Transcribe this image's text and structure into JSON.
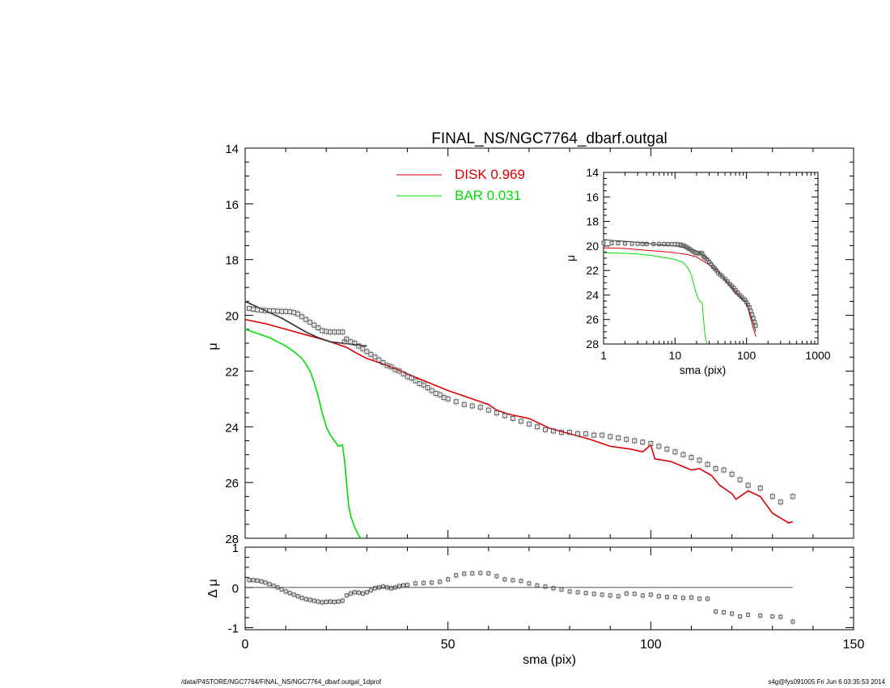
{
  "figure": {
    "title": "FINAL_NS/NGC7764_dbarf.outgal",
    "footer_left": "/data/P4STORE/NGC7764/FINAL_NS/NGC7764_dbarf.outgal_1dprof",
    "footer_right": "s4g@fys091005  Fri Jun  6 03:35:53 2014"
  },
  "chart_data": [
    {
      "id": "main",
      "type": "scatter",
      "title": "FINAL_NS/NGC7764_dbarf.outgal",
      "xlabel": "",
      "ylabel": "μ",
      "xlim": [
        0,
        150
      ],
      "ylim": [
        28,
        14
      ],
      "y_inverted": true,
      "y_ticks": [
        "14",
        "16",
        "18",
        "20",
        "22",
        "24",
        "26",
        "28"
      ],
      "legend": {
        "placement": "top-center",
        "entries": [
          {
            "label": "DISK  0.969",
            "color": "#dd0000"
          },
          {
            "label": "BAR  0.031",
            "color": "#00dd00"
          }
        ]
      },
      "series": [
        {
          "name": "DISK  0.969",
          "kind": "line",
          "color": "#dd0000",
          "x": [
            0,
            5,
            10,
            15,
            20,
            25,
            28,
            30,
            35,
            40,
            45,
            50,
            55,
            60,
            62,
            65,
            70,
            75,
            80,
            85,
            90,
            95,
            98,
            100,
            101,
            105,
            110,
            112,
            115,
            117,
            120,
            121,
            124,
            127,
            130,
            134,
            135
          ],
          "y": [
            20.15,
            20.3,
            20.5,
            20.7,
            20.9,
            21.15,
            21.4,
            21.55,
            21.8,
            22.1,
            22.4,
            22.7,
            22.95,
            23.2,
            23.4,
            23.55,
            23.7,
            24.05,
            24.25,
            24.45,
            24.7,
            24.8,
            24.9,
            24.65,
            25.15,
            25.25,
            25.55,
            25.5,
            25.75,
            26.1,
            26.4,
            26.6,
            26.3,
            26.5,
            27.1,
            27.45,
            27.4
          ]
        },
        {
          "name": "BAR  0.031",
          "kind": "line",
          "color": "#00dd00",
          "x": [
            0,
            2,
            4,
            6,
            8,
            10,
            12,
            14,
            15,
            16,
            17,
            18,
            19,
            20,
            21,
            22,
            23,
            24,
            24.5,
            25,
            25.5,
            26,
            27,
            28,
            28.5
          ],
          "y": [
            20.5,
            20.6,
            20.7,
            20.8,
            20.95,
            21.1,
            21.3,
            21.55,
            21.75,
            22.0,
            22.4,
            22.9,
            23.5,
            24.0,
            24.3,
            24.5,
            24.7,
            24.65,
            25.2,
            26.0,
            26.8,
            27.2,
            27.6,
            27.9,
            28.0
          ]
        },
        {
          "name": "",
          "kind": "line",
          "color": "#333333",
          "x": [
            0,
            3,
            6,
            9,
            12,
            15,
            18,
            21,
            24,
            27,
            30
          ],
          "y": [
            19.5,
            19.7,
            19.9,
            20.1,
            20.35,
            20.6,
            20.8,
            20.95,
            21.0,
            21.05,
            21.1
          ]
        },
        {
          "name": "",
          "kind": "points",
          "color": "#555555",
          "x": [
            1,
            2,
            3,
            4,
            5,
            6,
            7,
            8,
            9,
            10,
            11,
            12,
            13,
            14,
            15,
            16,
            17,
            18,
            19,
            20,
            21,
            22,
            23,
            24,
            24.5,
            25,
            26,
            27,
            28,
            29,
            30,
            31,
            32,
            33,
            34,
            35,
            36,
            37,
            38,
            39,
            40,
            41,
            42,
            43,
            44,
            45,
            46,
            47,
            48,
            49,
            50,
            52,
            54,
            56,
            58,
            60,
            62,
            64,
            66,
            68,
            70,
            72,
            74,
            76,
            78,
            80,
            82,
            84,
            86,
            88,
            90,
            92,
            94,
            96,
            98,
            100,
            102,
            104,
            106,
            108,
            110,
            112,
            114,
            116,
            118,
            120,
            122,
            124,
            127,
            130,
            132,
            135
          ],
          "y": [
            19.75,
            19.78,
            19.8,
            19.82,
            19.83,
            19.84,
            19.84,
            19.85,
            19.86,
            19.86,
            19.87,
            19.9,
            19.95,
            20.05,
            20.15,
            20.25,
            20.35,
            20.45,
            20.55,
            20.58,
            20.6,
            20.6,
            20.6,
            20.6,
            20.95,
            20.85,
            20.95,
            21.0,
            21.1,
            21.2,
            21.3,
            21.4,
            21.5,
            21.6,
            21.7,
            21.8,
            21.85,
            21.95,
            22.0,
            22.1,
            22.2,
            22.25,
            22.35,
            22.45,
            22.5,
            22.6,
            22.7,
            22.8,
            22.85,
            22.95,
            23.0,
            23.1,
            23.2,
            23.25,
            23.3,
            23.4,
            23.5,
            23.6,
            23.7,
            23.8,
            23.9,
            24.0,
            24.1,
            24.15,
            24.2,
            24.2,
            24.25,
            24.25,
            24.3,
            24.3,
            24.35,
            24.4,
            24.45,
            24.5,
            24.55,
            24.6,
            24.7,
            24.8,
            24.9,
            25.0,
            25.1,
            25.2,
            25.35,
            25.5,
            25.55,
            25.7,
            25.9,
            26.1,
            26.2,
            26.5,
            26.7,
            26.5
          ]
        }
      ]
    },
    {
      "id": "residual",
      "type": "scatter",
      "xlabel": "sma (pix)",
      "ylabel": "Δ μ",
      "xlim": [
        0,
        150
      ],
      "ylim": [
        -1.05,
        1
      ],
      "x_ticks": [
        "0",
        "50",
        "100",
        "150"
      ],
      "y_ticks": [
        "1",
        "0",
        "-1"
      ],
      "zero_line": {
        "x": [
          0,
          135
        ],
        "y": 0
      },
      "series": [
        {
          "name": "",
          "kind": "points",
          "color": "#555555",
          "x": [
            1,
            2,
            3,
            4,
            5,
            6,
            7,
            8,
            9,
            10,
            11,
            12,
            13,
            14,
            15,
            16,
            17,
            18,
            19,
            20,
            21,
            22,
            23,
            24,
            25,
            26,
            27,
            28,
            29,
            30,
            31,
            32,
            33,
            34,
            35,
            36,
            37,
            38,
            39,
            40,
            42,
            44,
            46,
            48,
            50,
            52,
            54,
            56,
            58,
            60,
            62,
            64,
            66,
            68,
            70,
            72,
            74,
            76,
            78,
            80,
            82,
            84,
            86,
            88,
            90,
            92,
            94,
            96,
            98,
            100,
            102,
            104,
            106,
            108,
            110,
            112,
            114,
            116,
            118,
            120,
            122,
            124,
            127,
            130,
            132,
            135
          ],
          "y": [
            0.18,
            0.18,
            0.17,
            0.15,
            0.12,
            0.08,
            0.04,
            0.0,
            -0.05,
            -0.1,
            -0.14,
            -0.18,
            -0.22,
            -0.26,
            -0.29,
            -0.31,
            -0.33,
            -0.35,
            -0.37,
            -0.36,
            -0.35,
            -0.36,
            -0.35,
            -0.33,
            -0.2,
            -0.15,
            -0.12,
            -0.13,
            -0.15,
            -0.12,
            -0.07,
            -0.02,
            0.0,
            0.02,
            0.0,
            -0.02,
            0.0,
            0.03,
            0.05,
            0.06,
            0.1,
            0.11,
            0.12,
            0.14,
            0.2,
            0.3,
            0.34,
            0.35,
            0.36,
            0.35,
            0.28,
            0.2,
            0.18,
            0.16,
            0.1,
            0.05,
            0.02,
            -0.02,
            -0.05,
            -0.1,
            -0.12,
            -0.14,
            -0.16,
            -0.18,
            -0.2,
            -0.22,
            -0.15,
            -0.16,
            -0.2,
            -0.18,
            -0.22,
            -0.24,
            -0.24,
            -0.26,
            -0.25,
            -0.28,
            -0.28,
            -0.6,
            -0.62,
            -0.65,
            -0.72,
            -0.68,
            -0.7,
            -0.72,
            -0.73,
            -0.85
          ]
        }
      ]
    },
    {
      "id": "inset",
      "type": "scatter",
      "xlabel": "sma (pix)",
      "ylabel": "μ",
      "x_log": true,
      "xlim": [
        1,
        1000
      ],
      "ylim": [
        28,
        14
      ],
      "y_inverted": true,
      "x_ticks": [
        "1",
        "10",
        "100",
        "1000"
      ],
      "y_ticks": [
        "14",
        "16",
        "18",
        "20",
        "22",
        "24",
        "26",
        "28"
      ],
      "series": [
        {
          "name": "",
          "kind": "line",
          "color": "#dd0000",
          "x": [
            1,
            2,
            3,
            5,
            8,
            10,
            15,
            20,
            30,
            40,
            50,
            70,
            100,
            120,
            135
          ],
          "y": [
            20.15,
            20.2,
            20.3,
            20.4,
            20.5,
            20.55,
            20.7,
            20.9,
            21.55,
            22.1,
            22.7,
            23.7,
            24.65,
            26.4,
            27.4
          ]
        },
        {
          "name": "",
          "kind": "line",
          "color": "#00dd00",
          "x": [
            1,
            2,
            3,
            5,
            8,
            10,
            13,
            15,
            17,
            19,
            20,
            22,
            24,
            25,
            26,
            27,
            28
          ],
          "y": [
            20.55,
            20.6,
            20.65,
            20.8,
            21.0,
            21.1,
            21.35,
            21.75,
            22.4,
            23.5,
            24.0,
            24.5,
            24.65,
            26.0,
            27.0,
            27.7,
            28.0
          ]
        },
        {
          "name": "",
          "kind": "line",
          "color": "#333333",
          "x": [
            1,
            3,
            6,
            10,
            15,
            20,
            25,
            30,
            40,
            50,
            70,
            100,
            135
          ],
          "y": [
            19.5,
            19.7,
            19.9,
            20.0,
            20.2,
            20.4,
            20.8,
            21.1,
            22.0,
            22.8,
            23.9,
            24.6,
            27.0
          ]
        },
        {
          "name": "",
          "kind": "points",
          "color": "#555555",
          "x": [
            1,
            1.3,
            1.6,
            2,
            2.5,
            3,
            3.5,
            4,
            5,
            6,
            7,
            8,
            9,
            10,
            11,
            12,
            13,
            14,
            15,
            16,
            17,
            18,
            19,
            20,
            21,
            22,
            23,
            24,
            25,
            26,
            28,
            30,
            32,
            34,
            36,
            38,
            40,
            43,
            46,
            50,
            54,
            58,
            62,
            66,
            70,
            75,
            80,
            85,
            90,
            95,
            100,
            105,
            110,
            115,
            120,
            125,
            130,
            135
          ],
          "y": [
            19.75,
            19.77,
            19.78,
            19.8,
            19.81,
            19.82,
            19.83,
            19.84,
            19.84,
            19.85,
            19.85,
            19.86,
            19.86,
            19.86,
            19.87,
            19.9,
            19.95,
            20.05,
            20.15,
            20.25,
            20.35,
            20.45,
            20.55,
            20.58,
            20.6,
            20.6,
            20.6,
            20.6,
            20.85,
            20.95,
            21.1,
            21.3,
            21.5,
            21.7,
            21.85,
            22.0,
            22.2,
            22.35,
            22.5,
            22.7,
            22.9,
            23.1,
            23.25,
            23.4,
            23.6,
            23.8,
            24.0,
            24.15,
            24.3,
            24.4,
            24.6,
            24.8,
            25.0,
            25.3,
            25.6,
            25.9,
            26.2,
            26.5
          ]
        }
      ]
    }
  ]
}
